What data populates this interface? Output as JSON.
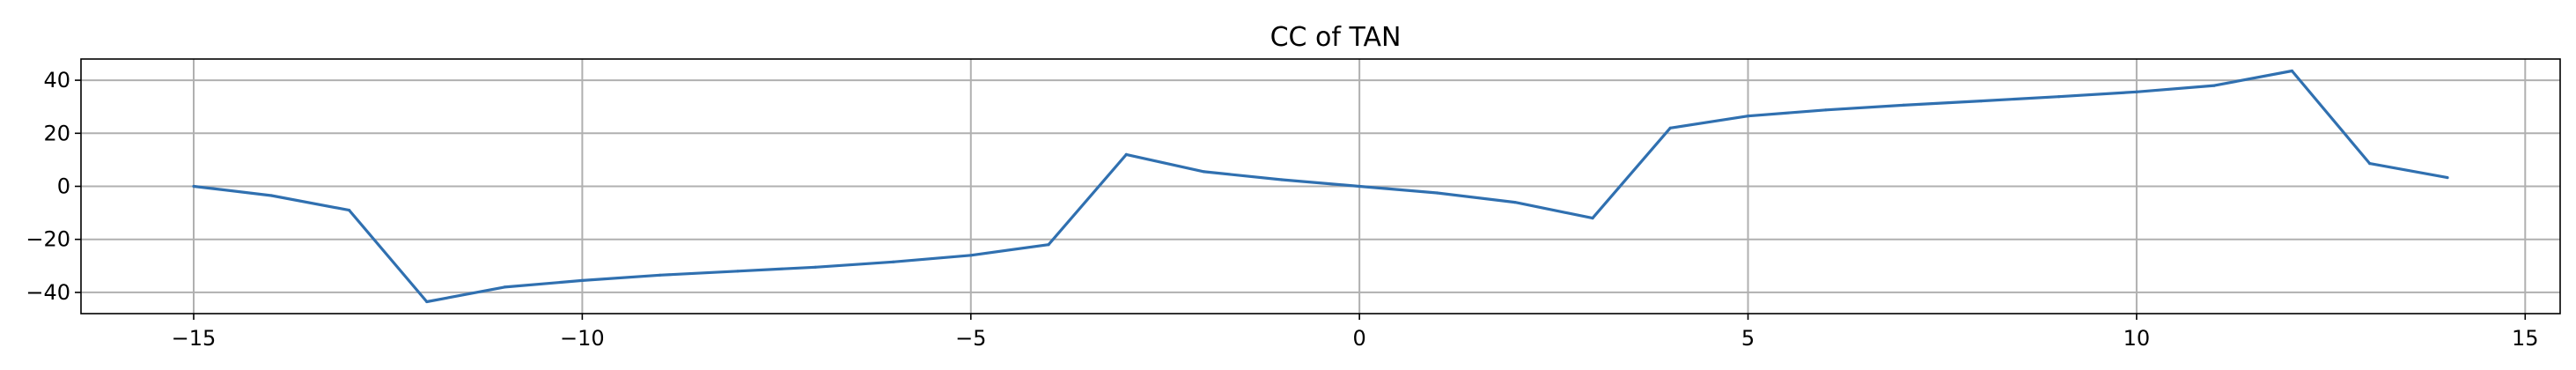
{
  "chart_data": {
    "type": "line",
    "title": "CC of TAN",
    "xlabel": "",
    "ylabel": "",
    "xlim": [
      -16.45,
      15.45
    ],
    "ylim": [
      -48,
      48
    ],
    "xticks": [
      -15,
      -10,
      -5,
      0,
      5,
      10,
      15
    ],
    "xtick_labels": [
      "−15",
      "−10",
      "−5",
      "0",
      "5",
      "10",
      "15"
    ],
    "yticks": [
      -40,
      -20,
      0,
      20,
      40
    ],
    "ytick_labels": [
      "−40",
      "−20",
      "0",
      "20",
      "40"
    ],
    "grid": true,
    "legend": "none",
    "series": [
      {
        "color": "#3070b0",
        "x": [
          -15,
          -14,
          -13,
          -12,
          -11,
          -10,
          -9,
          -8,
          -7,
          -6,
          -5,
          -4,
          -3,
          -2,
          -1,
          0,
          1,
          2,
          3,
          4,
          5,
          6,
          7,
          8,
          9,
          10,
          11,
          12,
          13,
          14
        ],
        "y": [
          0,
          -3.5,
          -9,
          -43.5,
          -38,
          -35.5,
          -33.5,
          -32,
          -30.5,
          -28.5,
          -26,
          -22,
          12,
          5.5,
          2.5,
          0,
          -2.5,
          -6,
          -12,
          22,
          26.5,
          28.8,
          30.6,
          32.2,
          33.8,
          35.6,
          38,
          43.5,
          8.6,
          3.3
        ]
      }
    ]
  }
}
